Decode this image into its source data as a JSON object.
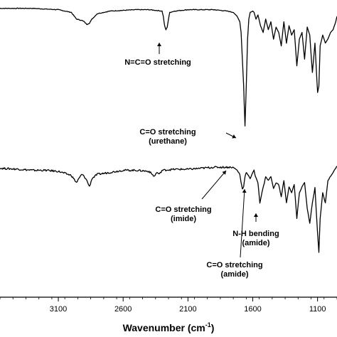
{
  "chart_data": {
    "type": "line",
    "title": "",
    "xlabel": "Wavenumber (cm",
    "xlabel_sup": "-1",
    "xlabel_end": ")",
    "ylabel": "",
    "x_reversed": true,
    "xlim": [
      3550,
      950
    ],
    "ylim": [
      0,
      100
    ],
    "x_ticks": [
      3100,
      2600,
      2100,
      1600,
      1100
    ],
    "grid": false,
    "legend": "none",
    "series": [
      {
        "x": [
          3550,
          3300,
          3100,
          3000,
          2960,
          2920,
          2900,
          2880,
          2860,
          2840,
          2800,
          2700,
          2500,
          2400,
          2300,
          2290,
          2280,
          2270,
          2260,
          2250,
          2240,
          2200,
          2100,
          2000,
          1900,
          1800,
          1750,
          1720,
          1700,
          1690,
          1680,
          1670,
          1660,
          1650,
          1640,
          1630,
          1620,
          1600,
          1590,
          1575,
          1560,
          1540,
          1520,
          1500,
          1480,
          1460,
          1440,
          1420,
          1400,
          1380,
          1360,
          1340,
          1320,
          1300,
          1280,
          1260,
          1240,
          1220,
          1200,
          1180,
          1160,
          1140,
          1120,
          1100,
          1090,
          1080,
          1060,
          1040,
          1020,
          1000,
          980,
          960,
          950
        ],
        "y": [
          98,
          98,
          97,
          95,
          90,
          89,
          88,
          86,
          87,
          90,
          94,
          96,
          97,
          97,
          96,
          92,
          85,
          82,
          84,
          90,
          95,
          96,
          97,
          97,
          97,
          96,
          95,
          92,
          88,
          80,
          60,
          40,
          10,
          40,
          75,
          90,
          95,
          96,
          95,
          90,
          93,
          85,
          80,
          90,
          82,
          88,
          75,
          84,
          80,
          70,
          88,
          72,
          85,
          78,
          82,
          55,
          75,
          80,
          60,
          84,
          78,
          50,
          72,
          35,
          40,
          70,
          78,
          72,
          75,
          80,
          82,
          88,
          92
        ]
      },
      {
        "x": [
          3550,
          3400,
          3300,
          3200,
          3100,
          3000,
          2960,
          2920,
          2900,
          2880,
          2860,
          2840,
          2800,
          2700,
          2600,
          2500,
          2400,
          2360,
          2340,
          2320,
          2300,
          2200,
          2100,
          2000,
          1900,
          1800,
          1760,
          1740,
          1720,
          1700,
          1690,
          1680,
          1670,
          1660,
          1650,
          1640,
          1620,
          1600,
          1590,
          1580,
          1560,
          1545,
          1530,
          1510,
          1500,
          1480,
          1460,
          1440,
          1420,
          1400,
          1380,
          1360,
          1340,
          1320,
          1300,
          1280,
          1260,
          1240,
          1220,
          1200,
          1180,
          1160,
          1140,
          1120,
          1100,
          1090,
          1080,
          1060,
          1040,
          1020,
          1000,
          980,
          960,
          950
        ],
        "y": [
          94,
          93,
          92,
          92,
          91,
          87,
          80,
          88,
          86,
          82,
          76,
          84,
          88,
          90,
          92,
          92,
          91,
          86,
          90,
          88,
          92,
          93,
          93,
          94,
          95,
          95,
          95,
          94,
          92,
          88,
          80,
          74,
          76,
          86,
          90,
          88,
          84,
          90,
          92,
          86,
          80,
          60,
          70,
          80,
          86,
          82,
          86,
          74,
          80,
          78,
          66,
          82,
          60,
          76,
          70,
          78,
          45,
          70,
          76,
          80,
          55,
          40,
          60,
          75,
          30,
          12,
          45,
          70,
          60,
          82,
          86,
          90,
          94,
          96
        ]
      }
    ],
    "annotations": [
      {
        "lines": [
          "N=C=O stretching"
        ]
      },
      {
        "lines": [
          "C=O stretching",
          "(urethane)"
        ]
      },
      {
        "lines": [
          "C=O stretching",
          "(imide)"
        ]
      },
      {
        "lines": [
          "N-H bending",
          "(amide)"
        ]
      },
      {
        "lines": [
          "C=O stretching",
          "(amide)"
        ]
      }
    ]
  }
}
